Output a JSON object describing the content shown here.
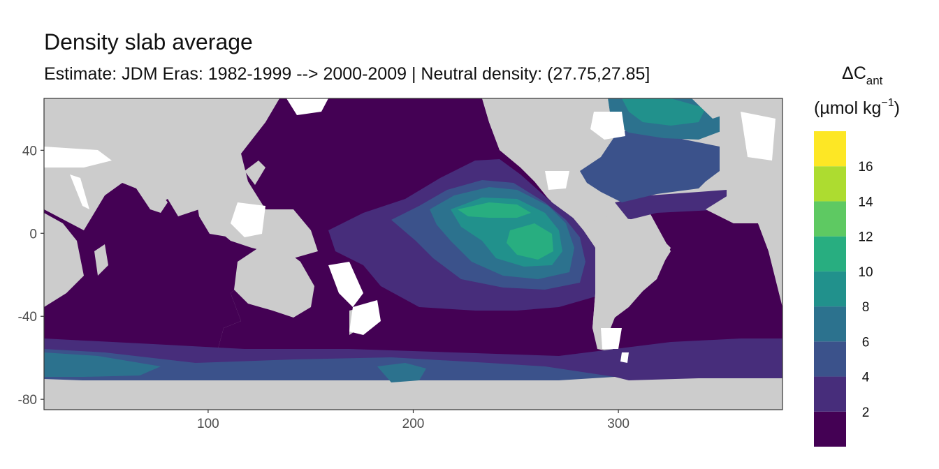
{
  "title": "Density slab average",
  "subtitle": "Estimate: JDM Eras: 1982-1999 --> 2000-2009 | Neutral density: (27.75,27.85]",
  "legend": {
    "title_main": "ΔC",
    "title_sub": "ant",
    "title_units": "(µmol kg",
    "title_units_exp": "−1",
    "title_units_close": ")"
  },
  "colors": {
    "land": "#cccccc",
    "missing": "#ffffff",
    "bins": [
      "#440154",
      "#472d7b",
      "#3b528b",
      "#2c728e",
      "#21918c",
      "#28ae80",
      "#5ec962",
      "#addc30",
      "#fde725"
    ]
  },
  "chart_data": {
    "type": "heatmap",
    "title": "Density slab average",
    "subtitle": "Estimate: JDM Eras: 1982-1999 --> 2000-2009 | Neutral density: (27.75,27.85]",
    "xlabel": "",
    "ylabel": "",
    "xlim": [
      20,
      380
    ],
    "ylim": [
      -85,
      65
    ],
    "x_ticks": [
      100,
      200,
      300
    ],
    "y_ticks": [
      40,
      0,
      -40,
      -80
    ],
    "grid": false,
    "legend_position": "right",
    "legend_breaks": [
      2,
      4,
      6,
      8,
      10,
      12,
      14,
      16
    ],
    "legend_range": [
      0,
      18
    ],
    "color_bins": [
      [
        0,
        2
      ],
      [
        2,
        4
      ],
      [
        4,
        6
      ],
      [
        6,
        8
      ],
      [
        8,
        10
      ],
      [
        10,
        12
      ],
      [
        12,
        14
      ],
      [
        14,
        16
      ],
      [
        16,
        18
      ]
    ]
  }
}
